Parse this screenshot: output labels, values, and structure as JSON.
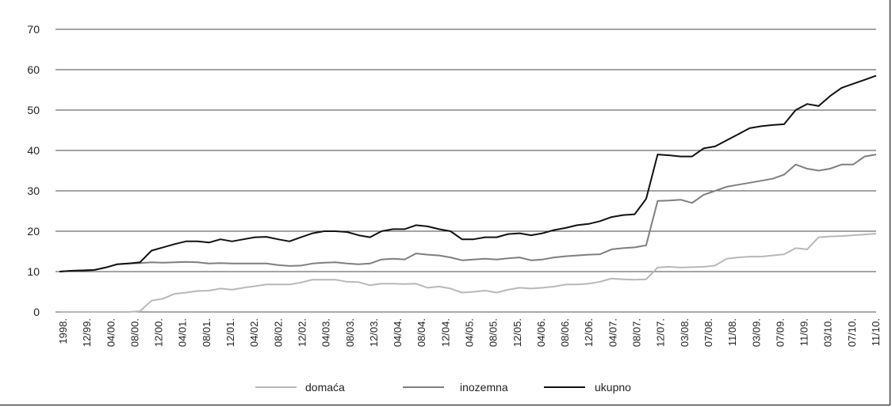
{
  "chart_data": {
    "type": "line",
    "title": "",
    "xlabel": "",
    "ylabel": "",
    "ylim": [
      0,
      70
    ],
    "yticks": [
      0,
      10,
      20,
      30,
      40,
      50,
      60,
      70
    ],
    "grid": "horizontal",
    "legend_position": "bottom",
    "x_tick_labels": [
      "1998.",
      "12/99.",
      "04/00.",
      "08/00.",
      "12/00.",
      "04/01.",
      "08/01.",
      "12/01.",
      "04/02.",
      "08/02.",
      "12/02.",
      "04/03.",
      "08/03.",
      "12/03.",
      "04/04.",
      "08/04.",
      "12/04.",
      "04/05.",
      "08/05.",
      "12/05.",
      "04/06.",
      "08/06.",
      "12/06.",
      "04/07.",
      "08/07.",
      "12/07.",
      "03/08.",
      "07/08.",
      "11/08.",
      "03/09.",
      "07/09.",
      "11/09.",
      "03/10.",
      "07/10.",
      "11/10."
    ],
    "series": [
      {
        "name": "domaća",
        "color": "#b8b8b8",
        "values": [
          0,
          0,
          0,
          0,
          0,
          0,
          0,
          0.2,
          2.8,
          3.3,
          4.5,
          4.8,
          5.2,
          5.3,
          5.8,
          5.5,
          6.0,
          6.4,
          6.8,
          6.8,
          6.8,
          7.3,
          8.0,
          8.0,
          8.0,
          7.5,
          7.4,
          6.6,
          7.0,
          7.0,
          6.9,
          7.0,
          6.0,
          6.3,
          5.8,
          4.8,
          5.0,
          5.3,
          4.8,
          5.5,
          6.0,
          5.8,
          6.0,
          6.3,
          6.8,
          6.8,
          7.0,
          7.5,
          8.3,
          8.1,
          8.0,
          8.1,
          11.0,
          11.2,
          11.0,
          11.1,
          11.2,
          11.5,
          13.2,
          13.5,
          13.7,
          13.7,
          14.0,
          14.3,
          15.8,
          15.5,
          18.5,
          18.7,
          18.8,
          19.0,
          19.2,
          19.4
        ]
      },
      {
        "name": "inozemna",
        "color": "#7f7f7f",
        "values": [
          10,
          10.2,
          10.3,
          10.4,
          11.0,
          11.8,
          12.0,
          12.1,
          12.3,
          12.2,
          12.3,
          12.4,
          12.3,
          12.0,
          12.1,
          12.0,
          12.0,
          12.0,
          12.0,
          11.6,
          11.4,
          11.5,
          12.0,
          12.2,
          12.3,
          12.0,
          11.8,
          12.0,
          13.0,
          13.2,
          13.0,
          14.5,
          14.2,
          14.0,
          13.5,
          12.8,
          13.0,
          13.2,
          13.0,
          13.3,
          13.5,
          12.8,
          13.0,
          13.5,
          13.8,
          14.0,
          14.2,
          14.3,
          15.5,
          15.8,
          16.0,
          16.5,
          27.5,
          27.6,
          27.8,
          27.0,
          29.0,
          30.0,
          31.0,
          31.5,
          32.0,
          32.5,
          33.0,
          34.0,
          36.5,
          35.5,
          35.0,
          35.5,
          36.5,
          36.5,
          38.5,
          39.0
        ]
      },
      {
        "name": "ukupno",
        "color": "#111111",
        "values": [
          10,
          10.2,
          10.3,
          10.4,
          11.0,
          11.8,
          12.0,
          12.3,
          15.2,
          16.0,
          16.8,
          17.5,
          17.5,
          17.2,
          18.0,
          17.5,
          18.0,
          18.5,
          18.6,
          18.0,
          17.5,
          18.5,
          19.5,
          20.0,
          20.0,
          19.8,
          19.0,
          18.5,
          20.0,
          20.5,
          20.5,
          21.5,
          21.2,
          20.5,
          20.0,
          18.0,
          18.0,
          18.5,
          18.5,
          19.3,
          19.5,
          19.0,
          19.5,
          20.3,
          20.8,
          21.5,
          21.8,
          22.5,
          23.5,
          24.0,
          24.2,
          28.0,
          39.0,
          38.8,
          38.5,
          38.5,
          40.5,
          41.0,
          42.5,
          44.0,
          45.5,
          46.0,
          46.3,
          46.5,
          50.0,
          51.5,
          51.0,
          53.5,
          55.5,
          56.5,
          57.5,
          58.5
        ]
      }
    ]
  }
}
